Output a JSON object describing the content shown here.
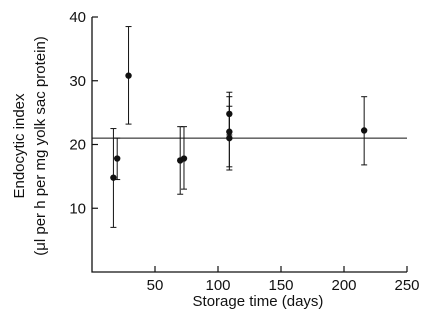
{
  "chart_data": {
    "type": "scatter",
    "title": "",
    "xlabel": "Storage time (days)",
    "ylabel_line1": "Endocytic index",
    "ylabel_line2": "(μl per h per mg yolk sac protein)",
    "xlim": [
      0,
      250
    ],
    "ylim": [
      0,
      40
    ],
    "x_ticks": [
      50,
      100,
      150,
      200,
      250
    ],
    "y_ticks": [
      10,
      20,
      30,
      40
    ],
    "grid": false,
    "legend": "none",
    "reference_line_y": 21,
    "points": [
      {
        "x": 17,
        "y": 14.8,
        "err_low": 7.0,
        "err_high": 22.5
      },
      {
        "x": 20,
        "y": 17.8,
        "err_low": 14.5,
        "err_high": 21.0
      },
      {
        "x": 29,
        "y": 30.8,
        "err_low": 23.2,
        "err_high": 38.5
      },
      {
        "x": 70,
        "y": 17.5,
        "err_low": 12.2,
        "err_high": 22.8
      },
      {
        "x": 73,
        "y": 17.8,
        "err_low": 13.0,
        "err_high": 22.8
      },
      {
        "x": 109,
        "y": 24.8,
        "err_low": 21.5,
        "err_high": 28.2
      },
      {
        "x": 109,
        "y": 22.0,
        "err_low": 16.5,
        "err_high": 27.5
      },
      {
        "x": 109,
        "y": 21.0,
        "err_low": 16.0,
        "err_high": 26.0
      },
      {
        "x": 216,
        "y": 22.2,
        "err_low": 16.8,
        "err_high": 27.5
      }
    ]
  }
}
